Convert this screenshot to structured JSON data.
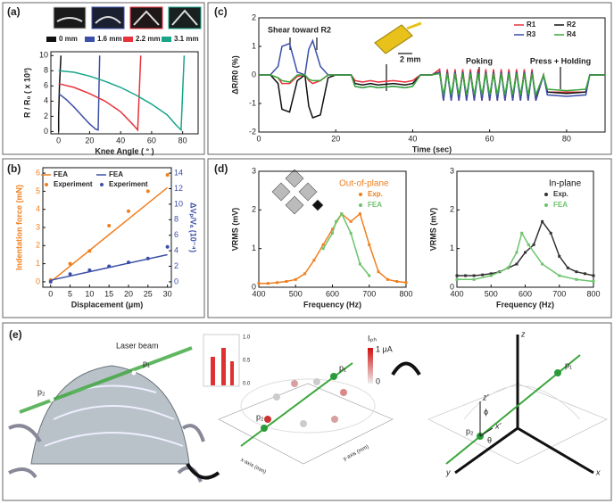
{
  "chart_data": [
    {
      "type": "line",
      "label": "(a)",
      "xlabel": "Knee Angle ( ° )",
      "ylabel": "R / R₀ ( x 10³)",
      "xlim": [
        -5,
        90
      ],
      "xticks": [
        0,
        20,
        40,
        60,
        80
      ],
      "ylim": [
        -0.3,
        10.5
      ],
      "yticks": [
        0,
        2,
        4,
        6,
        8,
        10
      ],
      "series": [
        {
          "name": "0 mm",
          "color": "#111111",
          "mode": "lines",
          "x": [
            0,
            0,
            0.5,
            1.5
          ],
          "values": [
            0,
            2,
            6,
            10
          ]
        },
        {
          "name": "1.6 mm",
          "color": "#3b4fa8",
          "mode": "lines",
          "x": [
            0,
            5,
            10,
            15,
            20,
            24,
            25.5,
            26,
            26.5
          ],
          "values": [
            5,
            4.2,
            3.2,
            2.1,
            1.0,
            0.3,
            0.2,
            5,
            10
          ]
        },
        {
          "name": "2.2 mm",
          "color": "#e8323c",
          "mode": "lines",
          "x": [
            0,
            10,
            20,
            30,
            40,
            48,
            51,
            52,
            53
          ],
          "values": [
            6.3,
            5.8,
            5,
            4,
            2.6,
            0.9,
            0.2,
            5,
            10
          ]
        },
        {
          "name": "3.1 mm",
          "color": "#17a589",
          "mode": "lines",
          "x": [
            0,
            10,
            20,
            30,
            40,
            50,
            60,
            70,
            76,
            79,
            80,
            81
          ],
          "values": [
            8,
            7.8,
            7.3,
            6.6,
            5.8,
            4.8,
            3.6,
            2.2,
            0.8,
            0.2,
            5,
            10
          ]
        }
      ]
    },
    {
      "type": "line",
      "label": "(c)",
      "xlabel": "Time (sec)",
      "ylabel": "ΔR/R0 (%)",
      "xlim": [
        0,
        90
      ],
      "xticks": [
        0,
        20,
        40,
        60,
        80
      ],
      "ylim": [
        -2,
        2
      ],
      "yticks": [
        -2,
        -1,
        0,
        1,
        2
      ],
      "annotations": [
        "Shear toward R2",
        "Poking",
        "Press + Holding",
        "2 mm"
      ],
      "x": [
        0,
        3,
        5,
        6,
        8,
        10,
        12,
        13,
        14,
        16,
        18,
        20,
        24,
        25,
        27,
        29,
        31,
        35,
        38,
        40,
        42,
        44,
        45,
        47,
        48,
        49,
        50,
        51,
        52,
        53,
        54,
        55,
        56,
        57,
        58,
        59,
        60,
        61,
        62,
        63,
        64,
        65,
        66,
        67,
        68,
        69,
        70,
        71,
        72,
        74,
        75,
        80,
        85,
        86,
        90
      ],
      "series": [
        {
          "name": "R1",
          "color": "#e8323c",
          "mode": "lines",
          "values": [
            0,
            0,
            -0.1,
            -0.3,
            -0.3,
            -0.05,
            0,
            -0.2,
            -0.3,
            -0.2,
            0,
            0,
            0,
            -0.2,
            -0.25,
            -0.2,
            -0.25,
            -0.2,
            -0.25,
            -0.2,
            0,
            0,
            0,
            0.2,
            -0.9,
            0.2,
            -0.9,
            0.2,
            -0.9,
            0.2,
            -0.9,
            0.2,
            -0.9,
            0.2,
            -0.9,
            0.2,
            -0.9,
            0.2,
            -0.9,
            0.2,
            -0.9,
            0.2,
            -0.9,
            0.2,
            -0.9,
            0.2,
            -0.9,
            0.2,
            -0.9,
            0,
            -0.6,
            -0.6,
            -0.6,
            0,
            0
          ]
        },
        {
          "name": "R2",
          "color": "#111111",
          "mode": "lines",
          "values": [
            0,
            0,
            -0.3,
            -1.2,
            -1.3,
            -0.2,
            0,
            -1.1,
            -1.5,
            -1.4,
            -0.1,
            0,
            0,
            -0.3,
            -0.35,
            -0.3,
            -0.35,
            -0.3,
            -0.35,
            -0.3,
            0,
            0,
            0,
            0.1,
            -0.8,
            0.1,
            -0.8,
            0.1,
            -0.8,
            0.1,
            -0.8,
            0.1,
            -0.8,
            0.1,
            -0.8,
            0.1,
            -0.8,
            0.1,
            -0.8,
            0.1,
            -0.8,
            0.1,
            -0.8,
            0.1,
            -0.8,
            0.1,
            -0.8,
            0.1,
            -0.8,
            0,
            -0.6,
            -0.65,
            -0.6,
            0,
            0
          ]
        },
        {
          "name": "R3",
          "color": "#3b4fa8",
          "mode": "lines",
          "values": [
            0,
            0,
            0.3,
            1.0,
            1.1,
            0.1,
            0,
            0.9,
            1.2,
            0.3,
            0,
            0,
            0,
            -0.4,
            -0.45,
            -0.4,
            -0.45,
            -0.4,
            -0.45,
            -0.4,
            0,
            0,
            0,
            0.1,
            -0.9,
            0.1,
            -0.9,
            0.1,
            -0.9,
            0.1,
            -0.9,
            0.1,
            -0.9,
            0.1,
            -0.9,
            0.1,
            -0.9,
            0.1,
            -0.9,
            0.1,
            -0.9,
            0.1,
            -0.9,
            0.1,
            -0.9,
            0.1,
            -0.9,
            0.1,
            -0.9,
            0,
            -0.7,
            -0.75,
            -0.7,
            0,
            0
          ]
        },
        {
          "name": "R4",
          "color": "#3aa63a",
          "mode": "lines",
          "values": [
            0,
            0,
            -0.1,
            -0.2,
            -0.25,
            0,
            0,
            -0.15,
            -0.2,
            -0.2,
            0,
            0,
            0,
            -0.4,
            -0.45,
            -0.4,
            -0.45,
            -0.4,
            -0.45,
            -0.4,
            0,
            0,
            0,
            0.05,
            -0.7,
            0.05,
            -0.7,
            0.05,
            -0.7,
            0.05,
            -0.7,
            0.05,
            -0.7,
            0.05,
            -0.7,
            0.05,
            -0.7,
            0.05,
            -0.7,
            0.05,
            -0.7,
            0.05,
            -0.7,
            0.05,
            -0.7,
            0.05,
            -0.7,
            0.05,
            -0.7,
            0,
            -0.5,
            -0.55,
            -0.5,
            0,
            0
          ]
        }
      ]
    },
    {
      "type": "line",
      "label": "(b)",
      "xlabel": "Displacement (μm)",
      "ylabel": "Indentation force (mN)",
      "y2label": "ΔVₚ/Vₐ (10⁻⁴)",
      "xlim": [
        -2,
        31
      ],
      "xticks": [
        0,
        5,
        10,
        15,
        20,
        25,
        30
      ],
      "ylim": [
        -0.3,
        6.3
      ],
      "yticks": [
        0,
        1,
        2,
        3,
        4,
        5,
        6
      ],
      "y2lim": [
        -0.7,
        14.7
      ],
      "y2ticks": [
        0,
        2,
        4,
        6,
        8,
        10,
        12,
        14
      ],
      "y2color": "#3b4fa8",
      "ycolor": "#f07f1e",
      "series": [
        {
          "name": "FEA",
          "color": "#f07f1e",
          "mode": "lines",
          "x": [
            0,
            30
          ],
          "values": [
            0,
            5.2
          ]
        },
        {
          "name": "Experiment",
          "color": "#f07f1e",
          "mode": "markers",
          "x": [
            0,
            5,
            10,
            15,
            20,
            25,
            30
          ],
          "values": [
            0.1,
            1.0,
            1.7,
            3.1,
            3.9,
            5.0,
            5.9
          ]
        },
        {
          "name": "FEA",
          "color": "#3b4fa8",
          "mode": "lines",
          "axis": "y2",
          "x": [
            0,
            30
          ],
          "values": [
            0.2,
            3.5
          ]
        },
        {
          "name": "Experiment",
          "color": "#3b4fa8",
          "mode": "markers",
          "axis": "y2",
          "x": [
            0,
            5,
            10,
            15,
            20,
            25,
            30
          ],
          "values": [
            0,
            1.0,
            1.5,
            2.0,
            2.5,
            3.0,
            4.5
          ]
        }
      ]
    },
    {
      "type": "line",
      "label": "(d)",
      "title": "Out-of-plane",
      "title_color": "#f07f1e",
      "xlabel": "Frequency (Hz)",
      "ylabel": "VRMS (mV)",
      "xlim": [
        400,
        800
      ],
      "xticks": [
        400,
        500,
        600,
        700,
        800
      ],
      "ylim": [
        0,
        3
      ],
      "yticks": [
        0,
        1,
        2,
        3
      ],
      "series": [
        {
          "name": "Exp.",
          "color": "#f07f1e",
          "mode": "lines+markers",
          "x": [
            400,
            425,
            450,
            475,
            500,
            525,
            550,
            575,
            600,
            625,
            650,
            675,
            700,
            725,
            750,
            775,
            800
          ],
          "values": [
            0.1,
            0.1,
            0.12,
            0.15,
            0.2,
            0.35,
            0.7,
            1.1,
            1.5,
            1.9,
            1.7,
            1.9,
            1.1,
            0.4,
            0.2,
            0.15,
            0.12
          ]
        },
        {
          "name": "FEA",
          "color": "#6cc46c",
          "mode": "lines+markers",
          "x": [
            575,
            600,
            610,
            625,
            650,
            675,
            700
          ],
          "values": [
            1.0,
            1.4,
            1.7,
            1.9,
            1.4,
            0.6,
            0.3
          ]
        }
      ]
    },
    {
      "type": "line",
      "title": "In-plane",
      "title_color": "#111111",
      "xlabel": "Frequency (Hz)",
      "ylabel": "VRMS (mV)",
      "xlim": [
        400,
        800
      ],
      "xticks": [
        400,
        500,
        600,
        700,
        800
      ],
      "ylim": [
        0,
        3
      ],
      "yticks": [
        0,
        1,
        2,
        3
      ],
      "series": [
        {
          "name": "Exp.",
          "color": "#333333",
          "mode": "lines+markers",
          "x": [
            400,
            425,
            450,
            475,
            500,
            525,
            550,
            575,
            600,
            625,
            650,
            675,
            700,
            725,
            750,
            775,
            800
          ],
          "values": [
            0.3,
            0.3,
            0.3,
            0.32,
            0.35,
            0.4,
            0.5,
            0.6,
            0.9,
            1.1,
            1.7,
            1.4,
            0.8,
            0.5,
            0.4,
            0.35,
            0.3
          ]
        },
        {
          "name": "FEA",
          "color": "#6cc46c",
          "mode": "lines+markers",
          "x": [
            400,
            450,
            500,
            550,
            575,
            590,
            610,
            650,
            700,
            750,
            800
          ],
          "values": [
            0.2,
            0.2,
            0.3,
            0.5,
            0.9,
            1.4,
            1.1,
            0.6,
            0.3,
            0.2,
            0.15
          ]
        }
      ]
    }
  ],
  "diagram": {
    "label": "(e)",
    "laser": "Laser beam",
    "p1": "p₁",
    "p2": "p₂",
    "middle": {
      "iph": "Iₚₕ",
      "max": "1 μA",
      "min": "0",
      "xaxis": "x-axis (mm)",
      "yaxis": "y-axis (mm)",
      "p1": "p₁",
      "p2": "p₂",
      "z1": "1.0",
      "z05": "0.5",
      "z0": "0.0"
    },
    "right": {
      "z": "z",
      "zp": "z'",
      "xp": "x'",
      "x": "x",
      "y": "y",
      "p1": "p₁",
      "p2": "p₂",
      "phi": "ϕ",
      "theta": "θ"
    }
  }
}
